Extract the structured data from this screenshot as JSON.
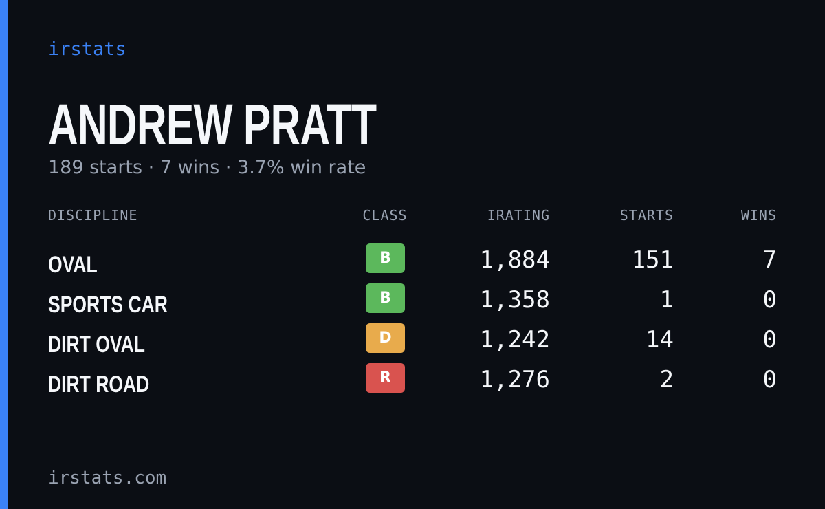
{
  "brand": "irstats",
  "name": "ANDREW PRATT",
  "subtitle": "189 starts · 7 wins · 3.7% win rate",
  "table": {
    "headers": [
      "DISCIPLINE",
      "CLASS",
      "IRATING",
      "STARTS",
      "WINS"
    ],
    "rows": [
      {
        "discipline": "OVAL",
        "class": "B",
        "class_color": "#5cb85c",
        "irating": "1,884",
        "starts": "151",
        "wins": "7"
      },
      {
        "discipline": "SPORTS CAR",
        "class": "B",
        "class_color": "#5cb85c",
        "irating": "1,358",
        "starts": "1",
        "wins": "0"
      },
      {
        "discipline": "DIRT OVAL",
        "class": "D",
        "class_color": "#e8ab4c",
        "irating": "1,242",
        "starts": "14",
        "wins": "0"
      },
      {
        "discipline": "DIRT ROAD",
        "class": "R",
        "class_color": "#d9534f",
        "irating": "1,276",
        "starts": "2",
        "wins": "0"
      }
    ]
  },
  "footer": "irstats.com"
}
